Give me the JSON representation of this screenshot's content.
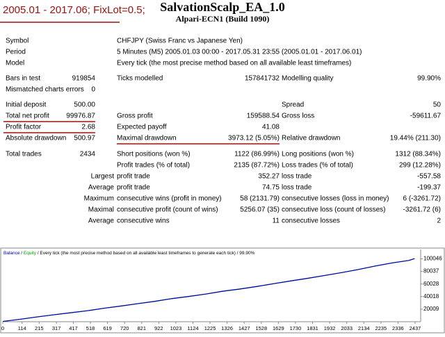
{
  "header": {
    "note": "2005.01 - 2017.06; FixLot=0.5;",
    "title": "SalvationScalp_EA_1.0",
    "subtitle": "Alpari-ECN1 (Build 1090)"
  },
  "report": {
    "rows": [
      {
        "l1": "Symbol",
        "l2": "CHFJPY (Swiss Franc vs Japanese Yen)"
      },
      {
        "l1": "Period",
        "l2": "5 Minutes (M5) 2005.01.03 00:00 - 2017.05.31 23:55 (2005.01.01 - 2017.06.01)"
      },
      {
        "l1": "Model",
        "l2": "Every tick (the most precise method based on all available least timeframes)"
      },
      {
        "l1": "Bars in test",
        "v1": "919854",
        "l2": "Ticks modelled",
        "v2": "157841732",
        "l3": "Modelling quality",
        "v3": "99.90%"
      },
      {
        "l1": "Mismatched charts errors",
        "v1": "0"
      },
      {
        "l1": "Initial deposit",
        "v1": "500.00",
        "l3": "Spread",
        "v3": "50"
      },
      {
        "l1": "Total net profit",
        "v1": "99976.87",
        "l2": "Gross profit",
        "v2": "159588.54",
        "l3": "Gross loss",
        "v3": "-59611.67"
      },
      {
        "l1": "Profit factor",
        "v1": "2.68",
        "l2": "Expected payoff",
        "v2": "41.08"
      },
      {
        "l1": "Absolute drawdown",
        "v1": "500.97",
        "l2": "Maximal drawdown",
        "v2": "3973.12 (5.05%)",
        "l3": "Relative drawdown",
        "v3": "19.44% (211.30)"
      },
      {
        "l1": "Total trades",
        "v1": "2434",
        "l2": "Short positions (won %)",
        "v2": "1122 (86.99%)",
        "l3": "Long positions (won %)",
        "v3": "1312 (88.34%)"
      },
      {
        "l2": "Profit trades (% of total)",
        "v2": "2135 (87.72%)",
        "l3": "Loss trades (% of total)",
        "v3": "299 (12.28%)"
      },
      {
        "l1r": "Largest",
        "l2": "profit trade",
        "v2": "352.27",
        "l3": "loss trade",
        "v3": "-557.58"
      },
      {
        "l1r": "Average",
        "l2": "profit trade",
        "v2": "74.75",
        "l3": "loss trade",
        "v3": "-199.37"
      },
      {
        "l1r": "Maximum",
        "l2": "consecutive wins (profit in money)",
        "v2": "58 (2131.79)",
        "l3": "consecutive losses (loss in money)",
        "v3": "6 (-3261.72)"
      },
      {
        "l1r": "Maximal",
        "l2": "consecutive profit (count of wins)",
        "v2": "5256.07 (35)",
        "l3": "consecutive loss (count of losses)",
        "v3": "-3261.72 (6)"
      },
      {
        "l1r": "Average",
        "l2": "consecutive wins",
        "v2": "11",
        "l3": "consecutive losses",
        "v3": "2"
      }
    ]
  },
  "chart_data": {
    "type": "line",
    "legend_text": "Every tick (the most precise method based on all available least timeframes to generate each tick)",
    "legend_quality": "99.90%",
    "x": [
      0,
      100,
      200,
      300,
      400,
      500,
      600,
      700,
      800,
      900,
      1000,
      1100,
      1200,
      1300,
      1400,
      1500,
      1600,
      1700,
      1800,
      1900,
      2000,
      2100,
      2200,
      2300,
      2400,
      2434
    ],
    "series": [
      {
        "name": "Equity",
        "color": "#00a000",
        "values": [
          500,
          3800,
          7500,
          11000,
          14200,
          17500,
          21500,
          25000,
          28800,
          32500,
          36800,
          40200,
          44000,
          48500,
          52000,
          56000,
          60500,
          64800,
          69000,
          73500,
          78000,
          83000,
          88500,
          93500,
          97500,
          100476
        ]
      },
      {
        "name": "Balance",
        "color": "#0000b0",
        "values": [
          500,
          3800,
          7500,
          11000,
          14200,
          17500,
          21500,
          25000,
          28800,
          32500,
          36800,
          40200,
          44000,
          48500,
          52000,
          56000,
          60500,
          64800,
          69000,
          73500,
          78000,
          83000,
          88500,
          93500,
          97500,
          100476
        ]
      }
    ],
    "xlim": [
      0,
      2470
    ],
    "xticks": [
      0,
      114,
      215,
      317,
      417,
      518,
      619,
      720,
      821,
      922,
      1023,
      1124,
      1225,
      1326,
      1427,
      1528,
      1629,
      1730,
      1831,
      1932,
      2033,
      2134,
      2235,
      2336,
      2437
    ],
    "ylim": [
      0,
      115000
    ],
    "yticks": [
      20009,
      40018,
      60028,
      80037,
      100046
    ]
  }
}
